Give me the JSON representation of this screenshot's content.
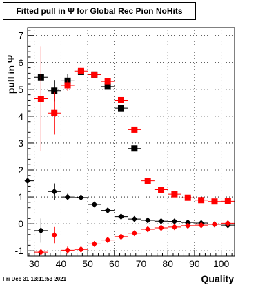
{
  "chart_data": {
    "type": "scatter",
    "title": "Fitted pull in  Ψ  for Global Rec Pion NoHits",
    "xlabel": "Quality",
    "ylabel": "pull in  Ψ",
    "xlim": [
      27.5,
      105
    ],
    "ylim": [
      -1.2,
      7.3
    ],
    "x_ticks": [
      30,
      40,
      50,
      60,
      70,
      80,
      90,
      100
    ],
    "y_ticks": [
      -1,
      0,
      1,
      2,
      3,
      4,
      5,
      6,
      7
    ],
    "grid": true,
    "x_half_width": 2.5,
    "series": [
      {
        "color": "#000000",
        "marker": "square",
        "points": [
          {
            "x": 32.5,
            "y": 5.45,
            "err": 0.0
          },
          {
            "x": 37.5,
            "y": 4.95,
            "err": 0.4
          },
          {
            "x": 42.5,
            "y": 5.32,
            "err": 0.25
          },
          {
            "x": 47.5,
            "y": 5.65,
            "err": 0.1
          },
          {
            "x": 52.5,
            "y": 5.55,
            "err": 0.08
          },
          {
            "x": 57.5,
            "y": 5.1,
            "err": 0.1
          },
          {
            "x": 62.5,
            "y": 4.3,
            "err": 0.08
          },
          {
            "x": 67.5,
            "y": 2.8,
            "err": 0.05
          }
        ]
      },
      {
        "color": "#ff0000",
        "marker": "square",
        "points": [
          {
            "x": 32.5,
            "y": 4.65,
            "err": 1.95
          },
          {
            "x": 37.5,
            "y": 4.12,
            "err": 0.8
          },
          {
            "x": 42.5,
            "y": 5.15,
            "err": 0.2
          },
          {
            "x": 47.5,
            "y": 5.68,
            "err": 0.12
          },
          {
            "x": 52.5,
            "y": 5.55,
            "err": 0.08
          },
          {
            "x": 57.5,
            "y": 5.3,
            "err": 0.08
          },
          {
            "x": 62.5,
            "y": 4.6,
            "err": 0.06
          },
          {
            "x": 67.5,
            "y": 3.5,
            "err": 0.05
          },
          {
            "x": 72.5,
            "y": 1.6,
            "err": 0.04
          },
          {
            "x": 77.5,
            "y": 1.27,
            "err": 0.03
          },
          {
            "x": 82.5,
            "y": 1.1,
            "err": 0.03
          },
          {
            "x": 87.5,
            "y": 0.97,
            "err": 0.03
          },
          {
            "x": 92.5,
            "y": 0.88,
            "err": 0.03
          },
          {
            "x": 97.5,
            "y": 0.83,
            "err": 0.03
          },
          {
            "x": 102.5,
            "y": 0.84,
            "err": 0.03
          }
        ]
      },
      {
        "color": "#000000",
        "marker": "diamond",
        "points": [
          {
            "x": 27.5,
            "y": 1.6,
            "err": 0.0
          },
          {
            "x": 32.5,
            "y": -0.25,
            "err": 0.45
          },
          {
            "x": 37.5,
            "y": 1.2,
            "err": 0.3
          },
          {
            "x": 42.5,
            "y": 1.0,
            "err": 0.12
          },
          {
            "x": 47.5,
            "y": 0.98,
            "err": 0.06
          },
          {
            "x": 52.5,
            "y": 0.72,
            "err": 0.04
          },
          {
            "x": 57.5,
            "y": 0.5,
            "err": 0.03
          },
          {
            "x": 62.5,
            "y": 0.27,
            "err": 0.03
          },
          {
            "x": 67.5,
            "y": 0.18,
            "err": 0.03
          },
          {
            "x": 72.5,
            "y": 0.13,
            "err": 0.02
          },
          {
            "x": 77.5,
            "y": 0.1,
            "err": 0.02
          },
          {
            "x": 82.5,
            "y": 0.09,
            "err": 0.02
          },
          {
            "x": 87.5,
            "y": 0.05,
            "err": 0.02
          },
          {
            "x": 92.5,
            "y": 0.03,
            "err": 0.02
          },
          {
            "x": 97.5,
            "y": -0.02,
            "err": 0.02
          },
          {
            "x": 102.5,
            "y": -0.05,
            "err": 0.02
          }
        ]
      },
      {
        "color": "#ff0000",
        "marker": "diamond",
        "points": [
          {
            "x": 32.5,
            "y": -1.05,
            "err": 0.1
          },
          {
            "x": 37.5,
            "y": -0.42,
            "err": 0.3
          },
          {
            "x": 42.5,
            "y": -0.98,
            "err": 0.15
          },
          {
            "x": 47.5,
            "y": -0.95,
            "err": 0.07
          },
          {
            "x": 52.5,
            "y": -0.75,
            "err": 0.04
          },
          {
            "x": 57.5,
            "y": -0.6,
            "err": 0.03
          },
          {
            "x": 62.5,
            "y": -0.48,
            "err": 0.03
          },
          {
            "x": 67.5,
            "y": -0.35,
            "err": 0.03
          },
          {
            "x": 72.5,
            "y": -0.2,
            "err": 0.02
          },
          {
            "x": 77.5,
            "y": -0.15,
            "err": 0.02
          },
          {
            "x": 82.5,
            "y": -0.12,
            "err": 0.02
          },
          {
            "x": 87.5,
            "y": -0.07,
            "err": 0.02
          },
          {
            "x": 92.5,
            "y": -0.05,
            "err": 0.02
          },
          {
            "x": 97.5,
            "y": -0.02,
            "err": 0.02
          },
          {
            "x": 102.5,
            "y": 0.02,
            "err": 0.02
          }
        ]
      }
    ]
  },
  "footer": {
    "timestamp": "Fri Dec 31 13:11:53 2021"
  }
}
